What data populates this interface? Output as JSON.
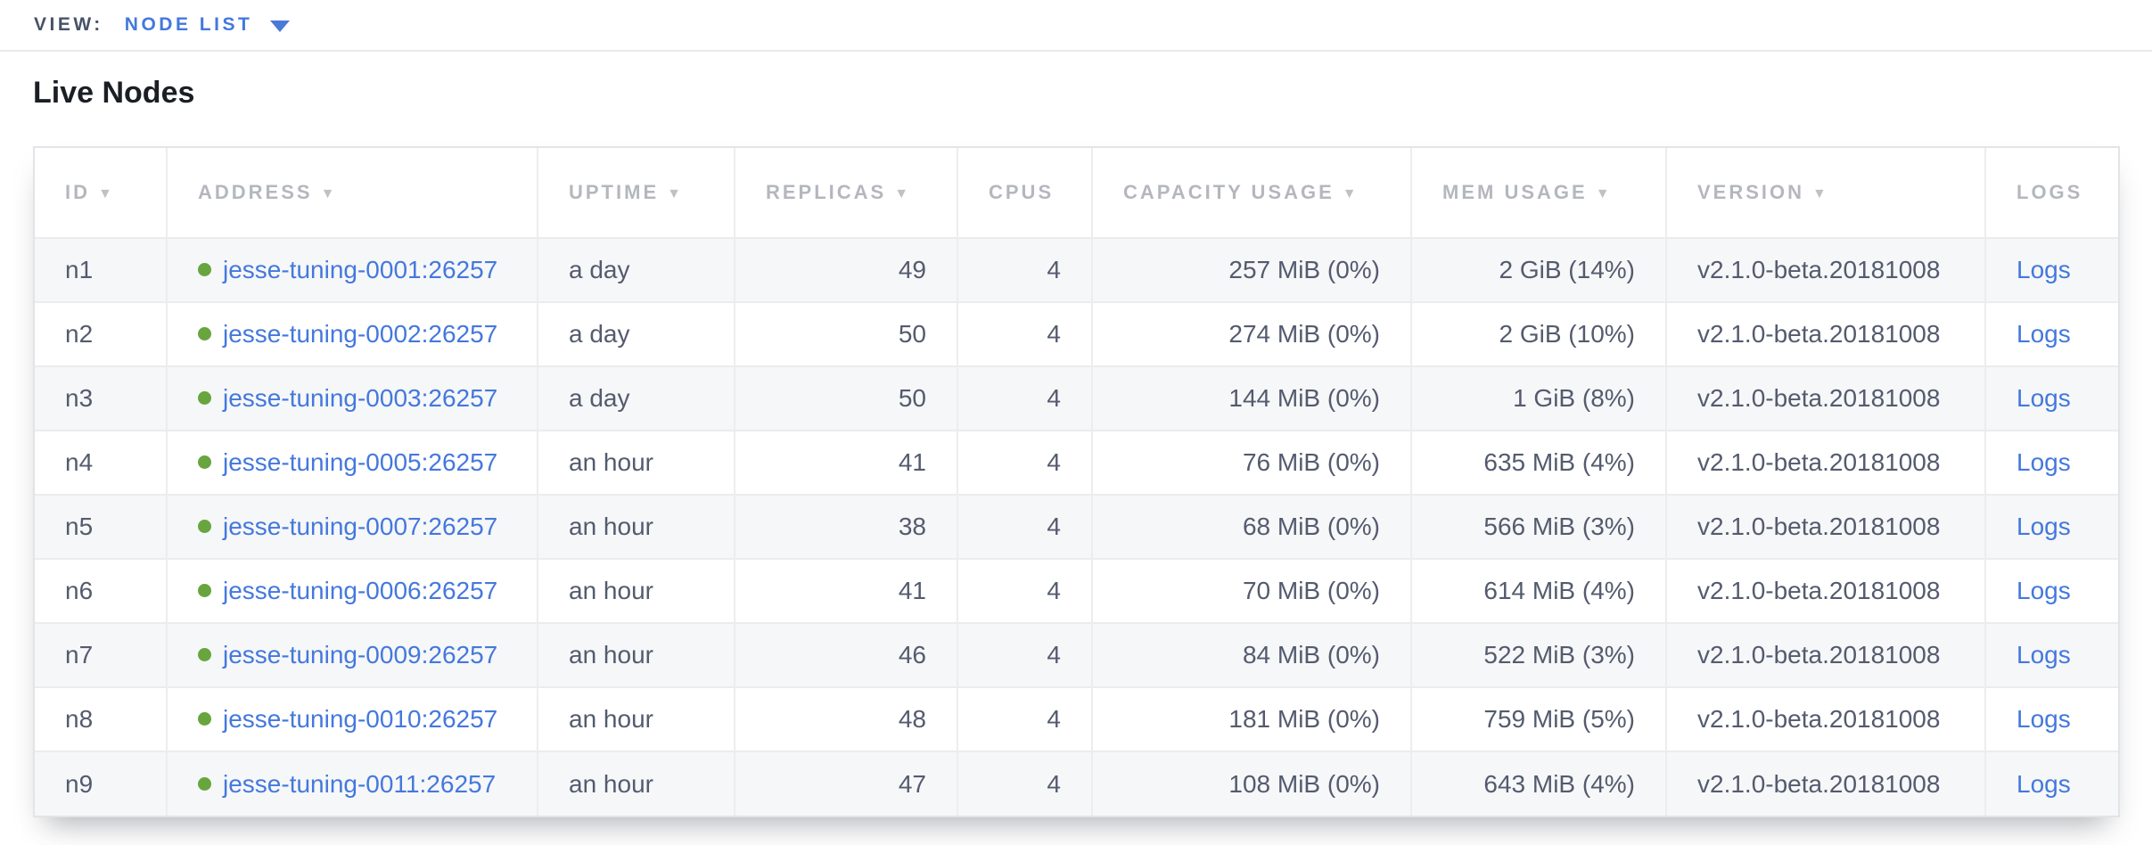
{
  "view_bar": {
    "label": "VIEW:",
    "selected": "NODE LIST"
  },
  "page": {
    "title": "Live Nodes"
  },
  "colors": {
    "link_blue": "#4478dd",
    "healthy_green": "#68a53f",
    "header_gray": "#b4b7bd",
    "cell_text": "#545b6e"
  },
  "table": {
    "sort_arrow_icon": "▼",
    "columns": [
      {
        "key": "id",
        "label": "ID",
        "sortable": true
      },
      {
        "key": "address",
        "label": "ADDRESS",
        "sortable": true
      },
      {
        "key": "uptime",
        "label": "UPTIME",
        "sortable": true
      },
      {
        "key": "replicas",
        "label": "REPLICAS",
        "sortable": true
      },
      {
        "key": "cpus",
        "label": "CPUS",
        "sortable": false
      },
      {
        "key": "capacity",
        "label": "CAPACITY USAGE",
        "sortable": true
      },
      {
        "key": "mem",
        "label": "MEM USAGE",
        "sortable": true
      },
      {
        "key": "version",
        "label": "VERSION",
        "sortable": true
      },
      {
        "key": "logs",
        "label": "LOGS",
        "sortable": false
      }
    ],
    "rows": [
      {
        "id": "n1",
        "status": "healthy",
        "address": "jesse-tuning-0001:26257",
        "uptime": "a day",
        "replicas": "49",
        "cpus": "4",
        "capacity": "257 MiB (0%)",
        "mem": "2 GiB (14%)",
        "version": "v2.1.0-beta.20181008",
        "logs": "Logs"
      },
      {
        "id": "n2",
        "status": "healthy",
        "address": "jesse-tuning-0002:26257",
        "uptime": "a day",
        "replicas": "50",
        "cpus": "4",
        "capacity": "274 MiB (0%)",
        "mem": "2 GiB (10%)",
        "version": "v2.1.0-beta.20181008",
        "logs": "Logs"
      },
      {
        "id": "n3",
        "status": "healthy",
        "address": "jesse-tuning-0003:26257",
        "uptime": "a day",
        "replicas": "50",
        "cpus": "4",
        "capacity": "144 MiB (0%)",
        "mem": "1 GiB (8%)",
        "version": "v2.1.0-beta.20181008",
        "logs": "Logs"
      },
      {
        "id": "n4",
        "status": "healthy",
        "address": "jesse-tuning-0005:26257",
        "uptime": "an hour",
        "replicas": "41",
        "cpus": "4",
        "capacity": "76 MiB (0%)",
        "mem": "635 MiB (4%)",
        "version": "v2.1.0-beta.20181008",
        "logs": "Logs"
      },
      {
        "id": "n5",
        "status": "healthy",
        "address": "jesse-tuning-0007:26257",
        "uptime": "an hour",
        "replicas": "38",
        "cpus": "4",
        "capacity": "68 MiB (0%)",
        "mem": "566 MiB (3%)",
        "version": "v2.1.0-beta.20181008",
        "logs": "Logs"
      },
      {
        "id": "n6",
        "status": "healthy",
        "address": "jesse-tuning-0006:26257",
        "uptime": "an hour",
        "replicas": "41",
        "cpus": "4",
        "capacity": "70 MiB (0%)",
        "mem": "614 MiB (4%)",
        "version": "v2.1.0-beta.20181008",
        "logs": "Logs"
      },
      {
        "id": "n7",
        "status": "healthy",
        "address": "jesse-tuning-0009:26257",
        "uptime": "an hour",
        "replicas": "46",
        "cpus": "4",
        "capacity": "84 MiB (0%)",
        "mem": "522 MiB (3%)",
        "version": "v2.1.0-beta.20181008",
        "logs": "Logs"
      },
      {
        "id": "n8",
        "status": "healthy",
        "address": "jesse-tuning-0010:26257",
        "uptime": "an hour",
        "replicas": "48",
        "cpus": "4",
        "capacity": "181 MiB (0%)",
        "mem": "759 MiB (5%)",
        "version": "v2.1.0-beta.20181008",
        "logs": "Logs"
      },
      {
        "id": "n9",
        "status": "healthy",
        "address": "jesse-tuning-0011:26257",
        "uptime": "an hour",
        "replicas": "47",
        "cpus": "4",
        "capacity": "108 MiB (0%)",
        "mem": "643 MiB (4%)",
        "version": "v2.1.0-beta.20181008",
        "logs": "Logs"
      }
    ]
  }
}
